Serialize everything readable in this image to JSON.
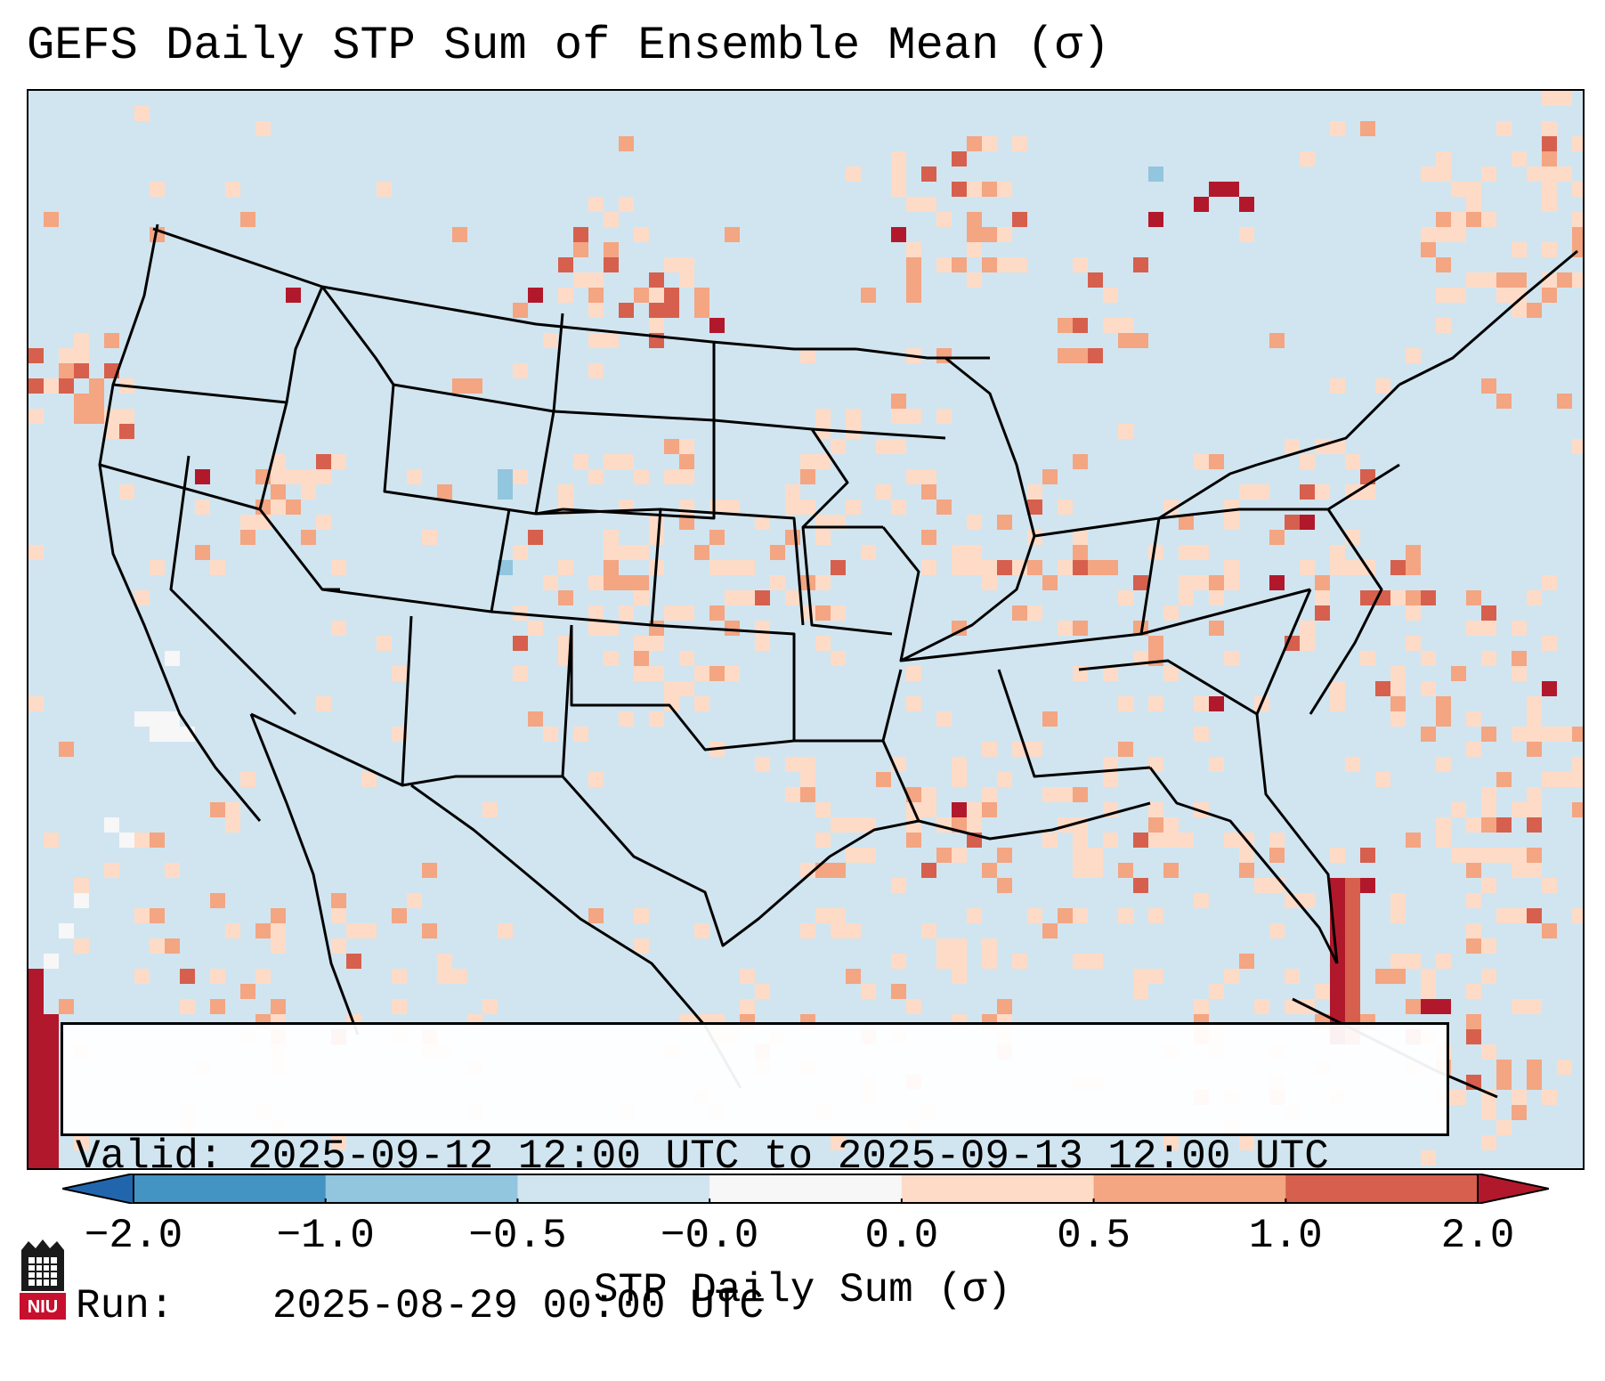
{
  "title": "GEFS Daily STP Sum of Ensemble Mean (σ)",
  "info": {
    "valid_label": "Valid:",
    "valid_value": "2025-09-12 12:00 UTC to 2025-09-13 12:00 UTC",
    "run_label": "Run:",
    "run_value": "2025-08-29 00:00 UTC"
  },
  "colorbar": {
    "label": "STP Daily Sum (σ)",
    "ticks": [
      "−2.0",
      "−1.0",
      "−0.5",
      "−0.0",
      "0.0",
      "0.5",
      "1.0",
      "2.0"
    ],
    "colors": [
      "#4393c3",
      "#92c5de",
      "#d1e5f0",
      "#f7f7f7",
      "#fddbc7",
      "#f4a582",
      "#d6604d"
    ],
    "under_color": "#2166ac",
    "over_color": "#b2182b"
  },
  "map": {
    "ocean_color": "#d1e5f0",
    "land_color": "#d1e5f0",
    "border_color": "#000000"
  },
  "logo": {
    "text": "NIU",
    "color": "#c8102e"
  }
}
